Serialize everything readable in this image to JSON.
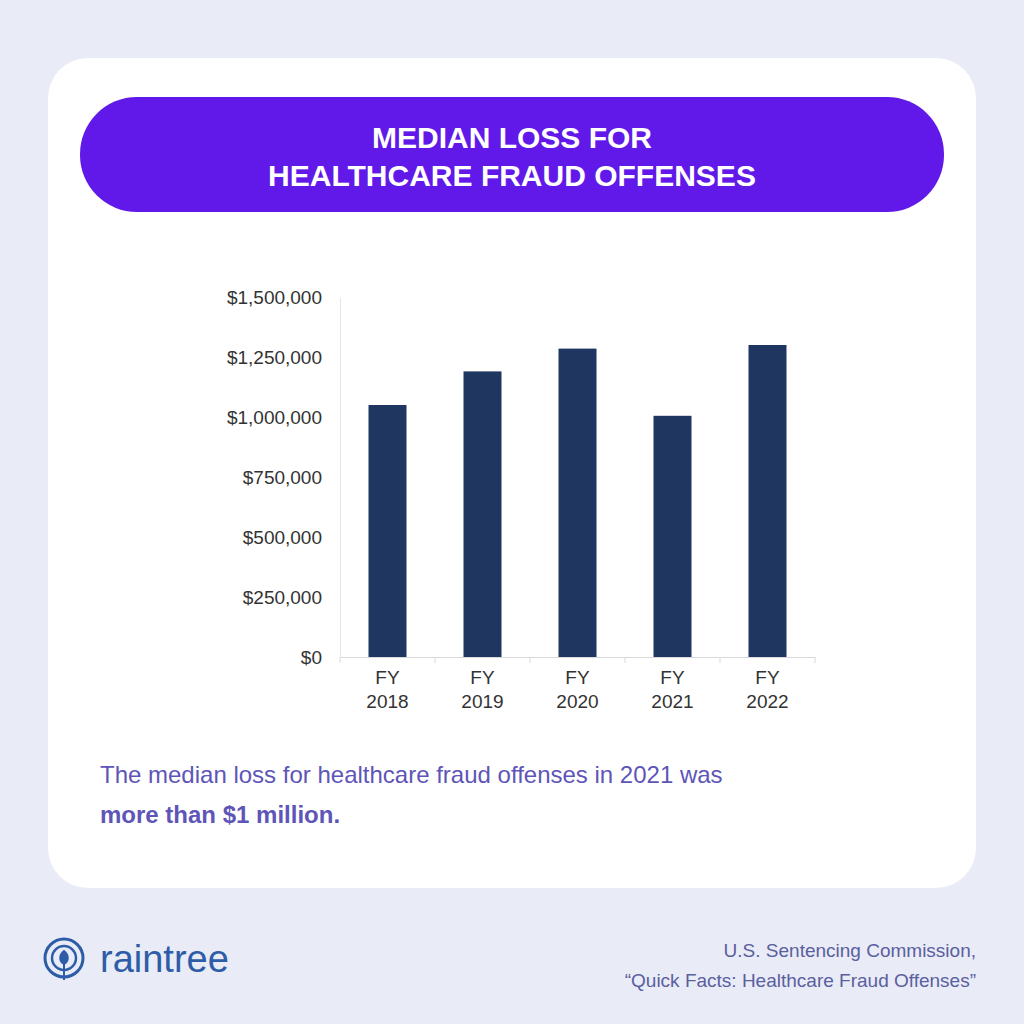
{
  "chart_data": {
    "type": "bar",
    "title": [
      "MEDIAN LOSS FOR",
      "HEALTHCARE FRAUD OFFENSES"
    ],
    "categories": [
      "FY 2018",
      "FY 2019",
      "FY 2020",
      "FY 2021",
      "FY 2022"
    ],
    "values": [
      1050000,
      1190000,
      1285000,
      1005000,
      1300000
    ],
    "color": "#1f3661",
    "ylim": [
      0,
      1500000
    ],
    "yticks": [
      {
        "value": 0,
        "label": "$0"
      },
      {
        "value": 250000,
        "label": "$250,000"
      },
      {
        "value": 500000,
        "label": "$500,000"
      },
      {
        "value": 750000,
        "label": "$750,000"
      },
      {
        "value": 1000000,
        "label": "$1,000,000"
      },
      {
        "value": 1250000,
        "label": "$1,250,000"
      },
      {
        "value": 1500000,
        "label": "$1,500,000"
      }
    ],
    "grid": false,
    "caption": {
      "text": "The median loss for healthcare fraud offenses in 2021 was",
      "emphasis": "more than $1 million."
    },
    "logo": "raintree",
    "source": [
      "U.S. Sentencing Commission,",
      "“Quick Facts: Healthcare Fraud Offenses”"
    ]
  }
}
